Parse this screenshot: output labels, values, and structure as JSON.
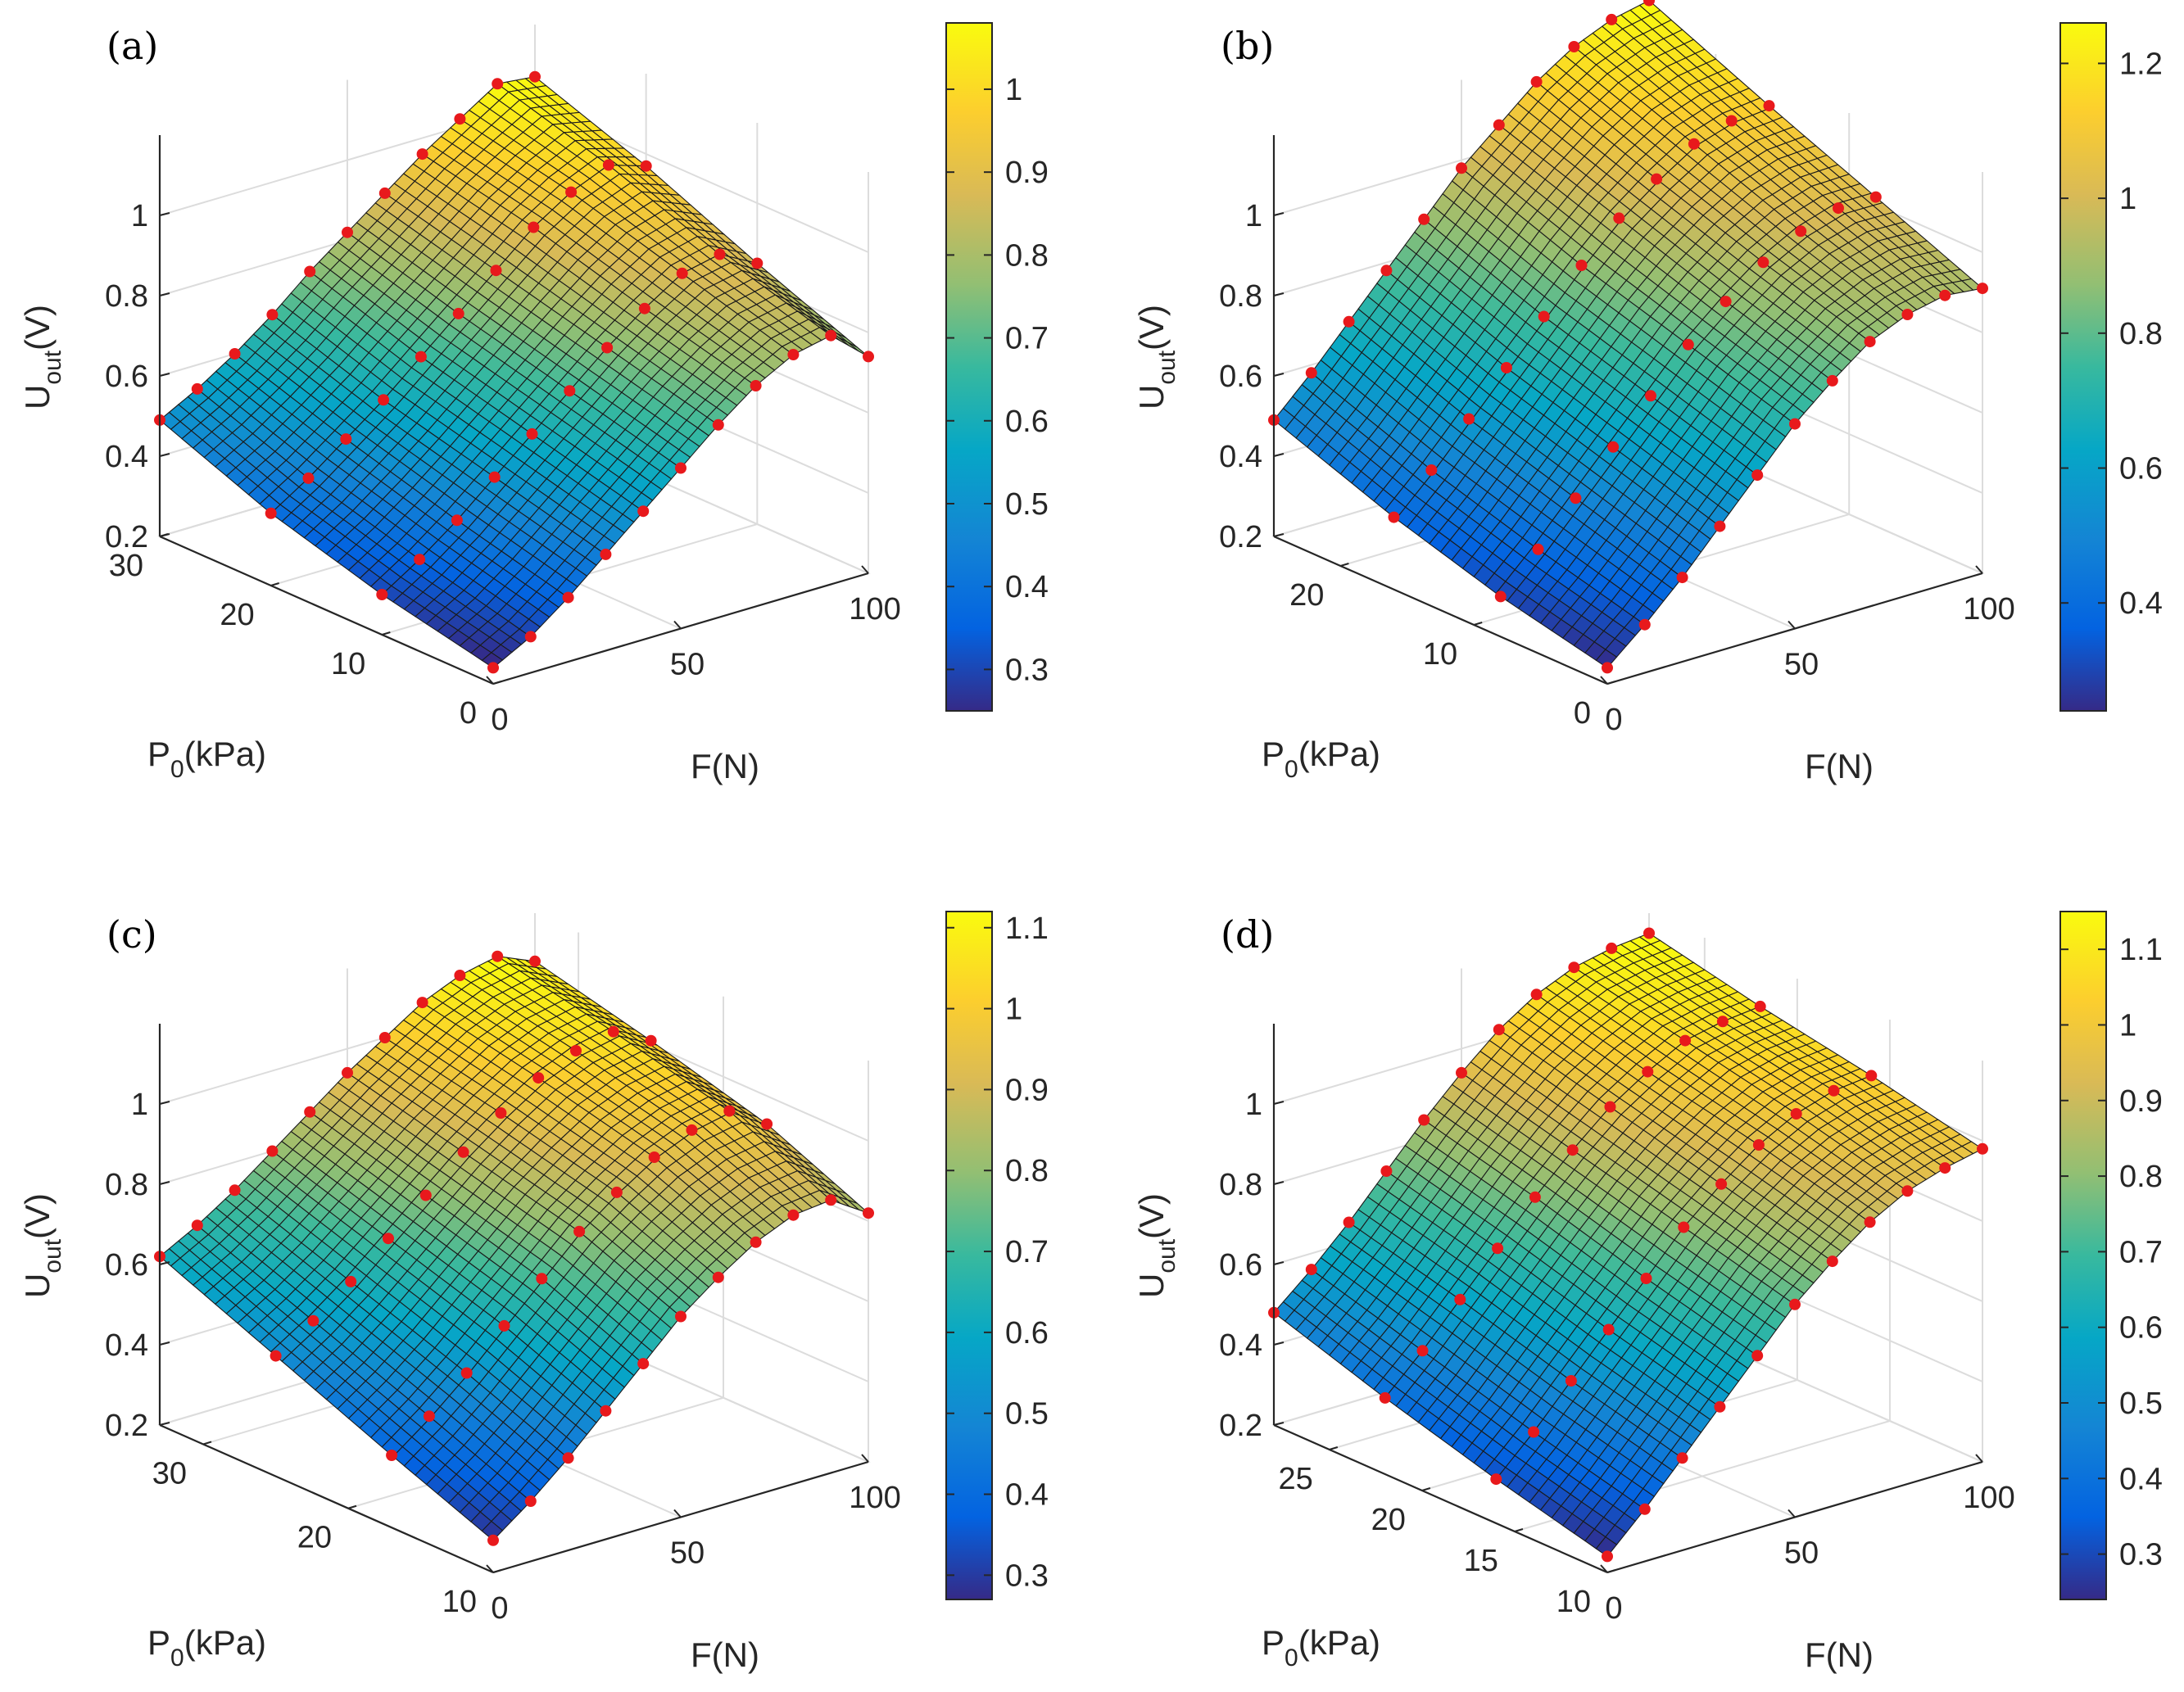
{
  "chart_data": [
    {
      "type": "surface",
      "panel_label": "(a)",
      "xlabel": "F(N)",
      "ylabel": {
        "main": "P",
        "sub": "0",
        "unit": "(kPa)"
      },
      "zlabel": {
        "main": "U",
        "sub": "out",
        "unit": "(V)"
      },
      "x_ticks": [
        "0",
        "50",
        "100"
      ],
      "y_ticks": [
        "0",
        "10",
        "20",
        "30"
      ],
      "z_ticks": [
        "0.2",
        "0.4",
        "0.6",
        "0.8",
        "1"
      ],
      "xlim": [
        0,
        100
      ],
      "ylim": [
        0,
        30
      ],
      "zlim": [
        0.2,
        1.2
      ],
      "colorbar": {
        "ticks": [
          "0.3",
          "0.4",
          "0.5",
          "0.6",
          "0.7",
          "0.8",
          "0.9",
          "1"
        ],
        "range": [
          0.25,
          1.08
        ]
      },
      "measured_lines": [
        {
          "P0": 30,
          "F": [
            0,
            10,
            20,
            30,
            40,
            50,
            60,
            70,
            80,
            90,
            100
          ],
          "U": [
            0.49,
            0.54,
            0.6,
            0.67,
            0.75,
            0.82,
            0.89,
            0.96,
            1.02,
            1.08,
            1.07
          ]
        },
        {
          "P0": 20,
          "F": [
            0,
            10,
            20,
            30,
            40,
            50,
            60,
            70,
            80,
            90,
            100
          ],
          "U": [
            0.38,
            0.44,
            0.51,
            0.58,
            0.66,
            0.74,
            0.82,
            0.9,
            0.96,
            1.0,
            0.97
          ]
        },
        {
          "P0": 10,
          "F": [
            0,
            10,
            20,
            30,
            40,
            50,
            60,
            70,
            80,
            90,
            100
          ],
          "U": [
            0.3,
            0.36,
            0.43,
            0.51,
            0.59,
            0.67,
            0.75,
            0.82,
            0.88,
            0.9,
            0.85
          ]
        },
        {
          "P0": 0,
          "F": [
            0,
            10,
            20,
            30,
            40,
            50,
            60,
            70,
            80,
            90,
            100
          ],
          "U": [
            0.24,
            0.29,
            0.36,
            0.44,
            0.52,
            0.6,
            0.68,
            0.75,
            0.8,
            0.82,
            0.74
          ]
        }
      ]
    },
    {
      "type": "surface",
      "panel_label": "(b)",
      "xlabel": "F(N)",
      "ylabel": {
        "main": "P",
        "sub": "0",
        "unit": "(kPa)"
      },
      "zlabel": {
        "main": "U",
        "sub": "out",
        "unit": "(V)"
      },
      "x_ticks": [
        "0",
        "50",
        "100"
      ],
      "y_ticks": [
        "0",
        "10",
        "20"
      ],
      "z_ticks": [
        "0.2",
        "0.4",
        "0.6",
        "0.8",
        "1"
      ],
      "xlim": [
        0,
        100
      ],
      "ylim": [
        0,
        25
      ],
      "zlim": [
        0.2,
        1.2
      ],
      "colorbar": {
        "ticks": [
          "0.4",
          "0.6",
          "0.8",
          "1",
          "1.2"
        ],
        "range": [
          0.24,
          1.26
        ]
      },
      "measured_lines": [
        {
          "P0": 25,
          "F": [
            0,
            10,
            20,
            30,
            40,
            50,
            60,
            70,
            80,
            90,
            100
          ],
          "U": [
            0.49,
            0.58,
            0.68,
            0.78,
            0.88,
            0.98,
            1.06,
            1.14,
            1.2,
            1.24,
            1.26
          ]
        },
        {
          "P0": 16,
          "F": [
            0,
            10,
            20,
            30,
            40,
            50,
            60,
            70,
            80,
            90,
            100
          ],
          "U": [
            0.38,
            0.47,
            0.57,
            0.67,
            0.77,
            0.87,
            0.96,
            1.03,
            1.09,
            1.12,
            1.13
          ]
        },
        {
          "P0": 8,
          "F": [
            0,
            10,
            20,
            30,
            40,
            50,
            60,
            70,
            80,
            90,
            100
          ],
          "U": [
            0.3,
            0.39,
            0.49,
            0.59,
            0.69,
            0.79,
            0.87,
            0.94,
            0.99,
            1.02,
            1.02
          ]
        },
        {
          "P0": 0,
          "F": [
            0,
            10,
            20,
            30,
            40,
            50,
            60,
            70,
            80,
            90,
            100
          ],
          "U": [
            0.24,
            0.32,
            0.41,
            0.51,
            0.61,
            0.71,
            0.79,
            0.86,
            0.9,
            0.92,
            0.91
          ]
        }
      ]
    },
    {
      "type": "surface",
      "panel_label": "(c)",
      "xlabel": "F(N)",
      "ylabel": {
        "main": "P",
        "sub": "0",
        "unit": "(kPa)"
      },
      "zlabel": {
        "main": "U",
        "sub": "out",
        "unit": "(V)"
      },
      "x_ticks": [
        "0",
        "50",
        "100"
      ],
      "y_ticks": [
        "10",
        "20",
        "30"
      ],
      "z_ticks": [
        "0.2",
        "0.4",
        "0.6",
        "0.8",
        "1"
      ],
      "xlim": [
        0,
        100
      ],
      "ylim": [
        10,
        33
      ],
      "zlim": [
        0.2,
        1.2
      ],
      "colorbar": {
        "ticks": [
          "0.3",
          "0.4",
          "0.5",
          "0.6",
          "0.7",
          "0.8",
          "0.9",
          "1",
          "1.1"
        ],
        "range": [
          0.27,
          1.12
        ]
      },
      "measured_lines": [
        {
          "P0": 33,
          "F": [
            0,
            10,
            20,
            30,
            40,
            50,
            60,
            70,
            80,
            90,
            100
          ],
          "U": [
            0.62,
            0.67,
            0.73,
            0.8,
            0.87,
            0.94,
            1.0,
            1.06,
            1.1,
            1.12,
            1.08
          ]
        },
        {
          "P0": 25,
          "F": [
            0,
            10,
            20,
            30,
            40,
            50,
            60,
            70,
            80,
            90,
            100
          ],
          "U": [
            0.5,
            0.56,
            0.63,
            0.71,
            0.79,
            0.87,
            0.94,
            1.0,
            1.04,
            1.06,
            1.01
          ]
        },
        {
          "P0": 17,
          "F": [
            0,
            10,
            20,
            30,
            40,
            50,
            60,
            70,
            80,
            90,
            100
          ],
          "U": [
            0.38,
            0.45,
            0.53,
            0.62,
            0.71,
            0.8,
            0.87,
            0.93,
            0.97,
            0.99,
            0.93
          ]
        },
        {
          "P0": 10,
          "F": [
            0,
            10,
            20,
            30,
            40,
            50,
            60,
            70,
            80,
            90,
            100
          ],
          "U": [
            0.28,
            0.35,
            0.43,
            0.52,
            0.61,
            0.7,
            0.77,
            0.83,
            0.87,
            0.88,
            0.82
          ]
        }
      ]
    },
    {
      "type": "surface",
      "panel_label": "(d)",
      "xlabel": "F(N)",
      "ylabel": {
        "main": "P",
        "sub": "0",
        "unit": "(kPa)"
      },
      "zlabel": {
        "main": "U",
        "sub": "out",
        "unit": "(V)"
      },
      "x_ticks": [
        "0",
        "50",
        "100"
      ],
      "y_ticks": [
        "10",
        "15",
        "20",
        "25"
      ],
      "z_ticks": [
        "0.2",
        "0.4",
        "0.6",
        "0.8",
        "1"
      ],
      "xlim": [
        0,
        100
      ],
      "ylim": [
        10,
        28
      ],
      "zlim": [
        0.2,
        1.2
      ],
      "colorbar": {
        "ticks": [
          "0.3",
          "0.4",
          "0.5",
          "0.6",
          "0.7",
          "0.8",
          "0.9",
          "1",
          "1.1"
        ],
        "range": [
          0.24,
          1.15
        ]
      },
      "measured_lines": [
        {
          "P0": 28,
          "F": [
            0,
            10,
            20,
            30,
            40,
            50,
            60,
            70,
            80,
            90,
            100
          ],
          "U": [
            0.48,
            0.56,
            0.65,
            0.75,
            0.85,
            0.94,
            1.02,
            1.08,
            1.12,
            1.14,
            1.15
          ]
        },
        {
          "P0": 22,
          "F": [
            0,
            10,
            20,
            30,
            40,
            50,
            60,
            70,
            80,
            90,
            100
          ],
          "U": [
            0.39,
            0.48,
            0.58,
            0.68,
            0.78,
            0.87,
            0.95,
            1.01,
            1.06,
            1.08,
            1.09
          ]
        },
        {
          "P0": 16,
          "F": [
            0,
            10,
            20,
            30,
            40,
            50,
            60,
            70,
            80,
            90,
            100
          ],
          "U": [
            0.31,
            0.4,
            0.5,
            0.6,
            0.7,
            0.8,
            0.88,
            0.95,
            1.0,
            1.03,
            1.04
          ]
        },
        {
          "P0": 10,
          "F": [
            0,
            10,
            20,
            30,
            40,
            50,
            60,
            70,
            80,
            90,
            100
          ],
          "U": [
            0.24,
            0.33,
            0.43,
            0.53,
            0.63,
            0.73,
            0.81,
            0.88,
            0.93,
            0.96,
            0.98
          ]
        }
      ]
    }
  ]
}
